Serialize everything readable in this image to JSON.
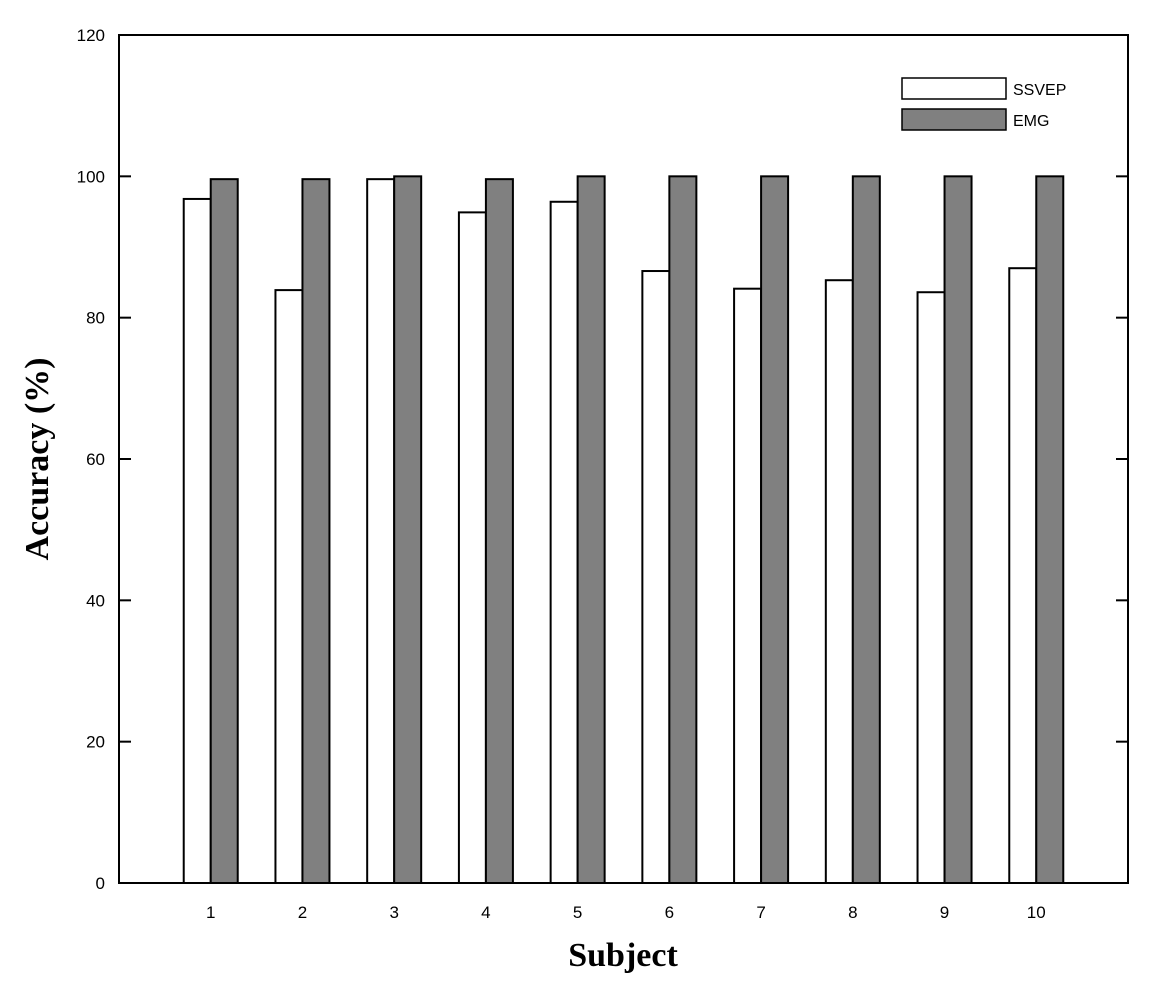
{
  "chart_data": {
    "type": "bar",
    "title": "",
    "xlabel": "Subject",
    "ylabel": "Accuracy (%)",
    "categories": [
      "1",
      "2",
      "3",
      "4",
      "5",
      "6",
      "7",
      "8",
      "9",
      "10"
    ],
    "xlim": [
      0,
      11
    ],
    "ylim": [
      0,
      120
    ],
    "yticks": [
      0,
      20,
      40,
      60,
      80,
      100,
      120
    ],
    "grid": false,
    "legend_position": "top-right",
    "series": [
      {
        "name": "SSVEP",
        "color": "#ffffff",
        "values": [
          96.8,
          83.9,
          99.6,
          94.9,
          96.4,
          86.6,
          84.1,
          85.3,
          83.6,
          87.0
        ]
      },
      {
        "name": "EMG",
        "color": "#808080",
        "values": [
          99.6,
          99.6,
          100,
          99.6,
          100,
          100,
          100,
          100,
          100,
          100
        ]
      }
    ]
  }
}
